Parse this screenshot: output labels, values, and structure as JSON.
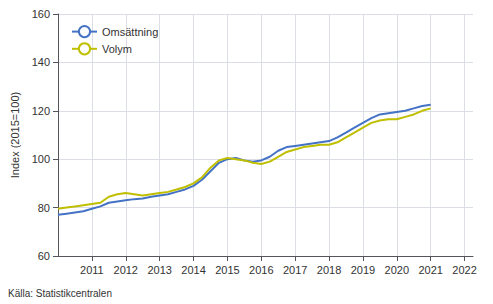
{
  "chart_data": {
    "type": "line",
    "ylabel": "Index (2015=100)",
    "source": "Källa: Statistikcentralen",
    "x": [
      2010,
      2010.25,
      2010.5,
      2010.75,
      2011,
      2011.25,
      2011.5,
      2011.75,
      2012,
      2012.25,
      2012.5,
      2012.75,
      2013,
      2013.25,
      2013.5,
      2013.75,
      2014,
      2014.25,
      2014.5,
      2014.75,
      2015,
      2015.25,
      2015.5,
      2015.75,
      2016,
      2016.25,
      2016.5,
      2016.75,
      2017,
      2017.25,
      2017.5,
      2017.75,
      2018,
      2018.25,
      2018.5,
      2018.75,
      2019,
      2019.25,
      2019.5,
      2019.75,
      2020,
      2020.25,
      2020.5,
      2020.75,
      2021
    ],
    "series": [
      {
        "name": "Omsättning",
        "color": "#4472C4",
        "values": [
          77.0,
          77.5,
          78.0,
          78.5,
          79.5,
          80.5,
          82.0,
          82.5,
          83.0,
          83.5,
          83.8,
          84.5,
          85.0,
          85.5,
          86.5,
          87.5,
          89.0,
          91.5,
          95.0,
          98.5,
          100.0,
          100.5,
          99.5,
          99.0,
          99.5,
          101.0,
          103.5,
          105.0,
          105.5,
          106.0,
          106.5,
          107.0,
          107.5,
          109.0,
          111.0,
          113.0,
          115.0,
          117.0,
          118.5,
          119.0,
          119.5,
          120.0,
          121.0,
          122.0,
          122.5
        ]
      },
      {
        "name": "Volym",
        "color": "#BFBF00",
        "values": [
          79.5,
          80.0,
          80.5,
          81.0,
          81.5,
          82.0,
          84.5,
          85.5,
          86.0,
          85.5,
          85.0,
          85.5,
          86.0,
          86.5,
          87.5,
          88.5,
          90.0,
          92.5,
          96.5,
          99.5,
          100.5,
          100.0,
          99.5,
          98.5,
          98.0,
          99.0,
          101.0,
          103.0,
          104.0,
          105.0,
          105.5,
          106.0,
          106.0,
          107.0,
          109.0,
          111.0,
          113.0,
          115.0,
          116.0,
          116.5,
          116.5,
          117.5,
          118.5,
          120.0,
          121.0
        ]
      }
    ],
    "xlim": [
      2010,
      2022.25
    ],
    "xticks": [
      2011,
      2012,
      2013,
      2014,
      2015,
      2016,
      2017,
      2018,
      2019,
      2020,
      2021,
      2022
    ],
    "ylim": [
      60,
      160
    ],
    "yticks": [
      60,
      80,
      100,
      120,
      140,
      160
    ],
    "grid": true,
    "legend": "upper left"
  }
}
